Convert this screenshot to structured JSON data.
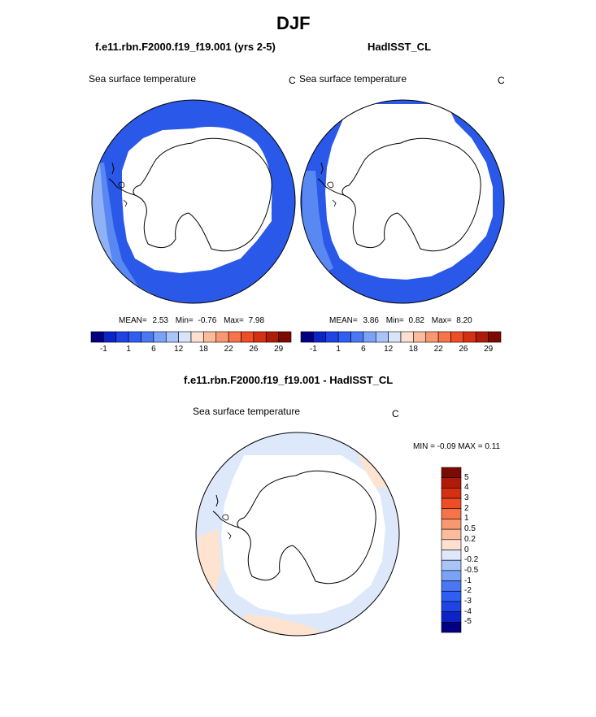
{
  "figure": {
    "season": "DJF",
    "left_case": "f.e11.rbn.F2000.f19_f19.001 (yrs 2-5)",
    "right_case": "HadISST_CL",
    "diff_title": "f.e11.rbn.F2000.f19_f19.001 - HadISST_CL"
  },
  "panels": {
    "left": {
      "variable": "Sea surface temperature",
      "units": "C",
      "mean_label": "MEAN=",
      "mean": "2.53",
      "min_label": "Min=",
      "min": "-0.76",
      "max_label": "Max=",
      "max": "7.98"
    },
    "right": {
      "variable": "Sea surface temperature",
      "units": "C",
      "mean_label": "MEAN=",
      "mean": "3.86",
      "min_label": "Min=",
      "min": "0.82",
      "max_label": "Max=",
      "max": "8.20"
    },
    "diff": {
      "variable": "Sea surface temperature",
      "units": "C",
      "minmax_text": "MIN =  -0.09 MAX =   0.11"
    }
  },
  "colorbar_main": {
    "colors": [
      "#020080",
      "#0a24c8",
      "#1e44e6",
      "#2f5ff2",
      "#4a78f5",
      "#7aa2f7",
      "#a8c4f9",
      "#d6e5fb",
      "#fde0cf",
      "#fbbb9c",
      "#f99870",
      "#f67448",
      "#ee4d26",
      "#d63012",
      "#b01a08",
      "#7d0a00"
    ],
    "tick_labels": [
      "-1",
      "1",
      "6",
      "12",
      "18",
      "22",
      "26",
      "29"
    ]
  },
  "colorbar_diff": {
    "colors": [
      "#7d0a00",
      "#b01a08",
      "#d63012",
      "#ee4d26",
      "#f67448",
      "#f99870",
      "#fbbb9c",
      "#fde0cf",
      "#dde9fb",
      "#a8c4f9",
      "#7aa2f7",
      "#4a78f5",
      "#2f5ff2",
      "#1e44e6",
      "#0a24c8",
      "#020080"
    ],
    "tick_labels": [
      "5",
      "4",
      "3",
      "2",
      "1",
      "0.5",
      "0.2",
      "0",
      "-0.2",
      "-0.5",
      "-1",
      "-2",
      "-3",
      "-4",
      "-5"
    ]
  },
  "legend_colors": {
    "dark_blue": "#2a58e8",
    "mid_blue": "#5a88f2",
    "light_blue": "#8fb2f6",
    "diff_blue": "#dde9fb",
    "diff_peach": "#fde3d0"
  }
}
